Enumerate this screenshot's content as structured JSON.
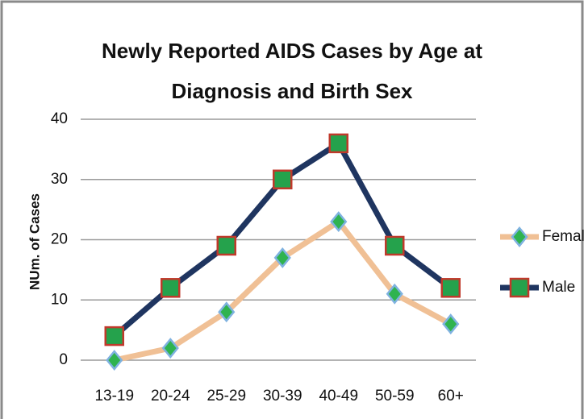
{
  "chart_data": {
    "type": "line",
    "title": "Newly Reported AIDS Cases by Age at Diagnosis and Birth Sex",
    "y_label": "NUm. of Cases",
    "categories": [
      "13-19",
      "20-24",
      "25-29",
      "30-39",
      "40-49",
      "50-59",
      "60+"
    ],
    "series": [
      {
        "name": "Female",
        "color": "#f0c095",
        "marker_fill": "#2fb34f",
        "marker_edge": "#7fb2e0",
        "marker": "diamond",
        "values": [
          0,
          2,
          8,
          17,
          23,
          11,
          6
        ]
      },
      {
        "name": "Male",
        "color": "#1f3560",
        "marker_fill": "#25a24c",
        "marker_edge": "#c0392b",
        "marker": "square",
        "values": [
          4,
          12,
          19,
          30,
          36,
          19,
          12
        ]
      }
    ],
    "ylim": [
      0,
      40
    ],
    "yticks": [
      0,
      10,
      20,
      30,
      40
    ],
    "grid": true,
    "legend": "right"
  }
}
